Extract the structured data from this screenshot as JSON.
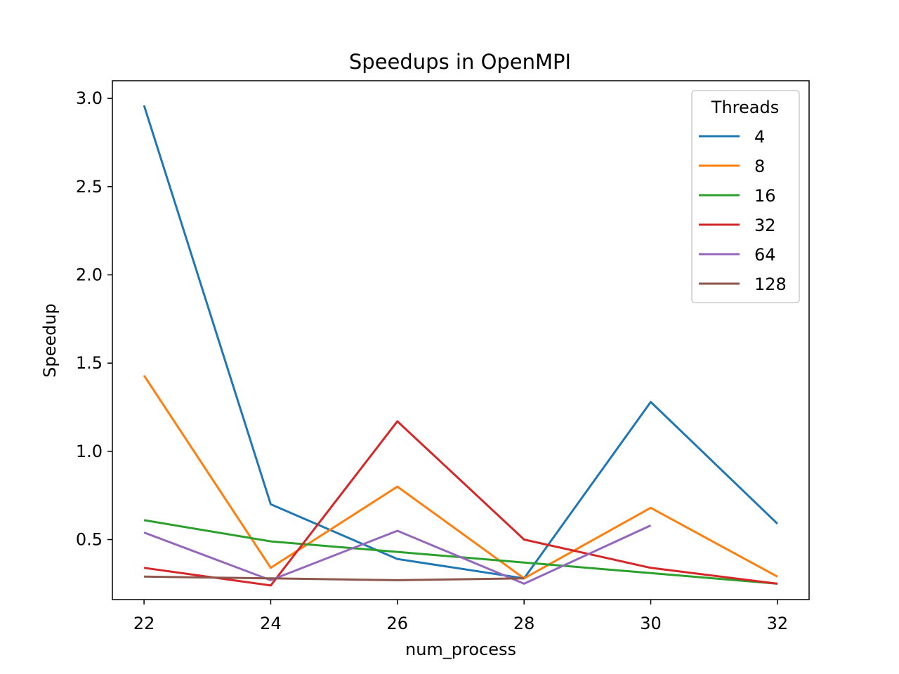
{
  "chart_data": {
    "type": "line",
    "title": "Speedups in OpenMPI",
    "xlabel": "num_process",
    "ylabel": "Speedup",
    "x": [
      22,
      24,
      26,
      28,
      30,
      32
    ],
    "xticks": [
      "22",
      "24",
      "26",
      "28",
      "30",
      "32"
    ],
    "yticks": [
      "0.5",
      "1.0",
      "1.5",
      "2.0",
      "2.5",
      "3.0"
    ],
    "xlim": [
      21.5,
      32.5
    ],
    "ylim": [
      0.16,
      3.1
    ],
    "grid": false,
    "legend": {
      "title": "Threads",
      "placement": "upper right"
    },
    "series": [
      {
        "name": "4",
        "color": "#1f77b4",
        "values": [
          2.96,
          0.7,
          0.39,
          0.28,
          1.28,
          0.59
        ]
      },
      {
        "name": "8",
        "color": "#ff7f0e",
        "values": [
          1.43,
          0.34,
          0.8,
          0.28,
          0.68,
          0.29
        ]
      },
      {
        "name": "16",
        "color": "#2ca02c",
        "values": [
          0.61,
          0.49,
          0.43,
          0.37,
          0.31,
          0.25
        ]
      },
      {
        "name": "32",
        "color": "#d62728",
        "values": [
          0.34,
          0.24,
          1.17,
          0.5,
          0.34,
          0.25
        ]
      },
      {
        "name": "64",
        "color": "#9467bd",
        "values": [
          0.54,
          0.27,
          0.55,
          0.25,
          0.58,
          null
        ]
      },
      {
        "name": "128",
        "color": "#8c564b",
        "values": [
          0.29,
          0.28,
          0.27,
          0.28,
          null,
          null
        ]
      }
    ]
  }
}
